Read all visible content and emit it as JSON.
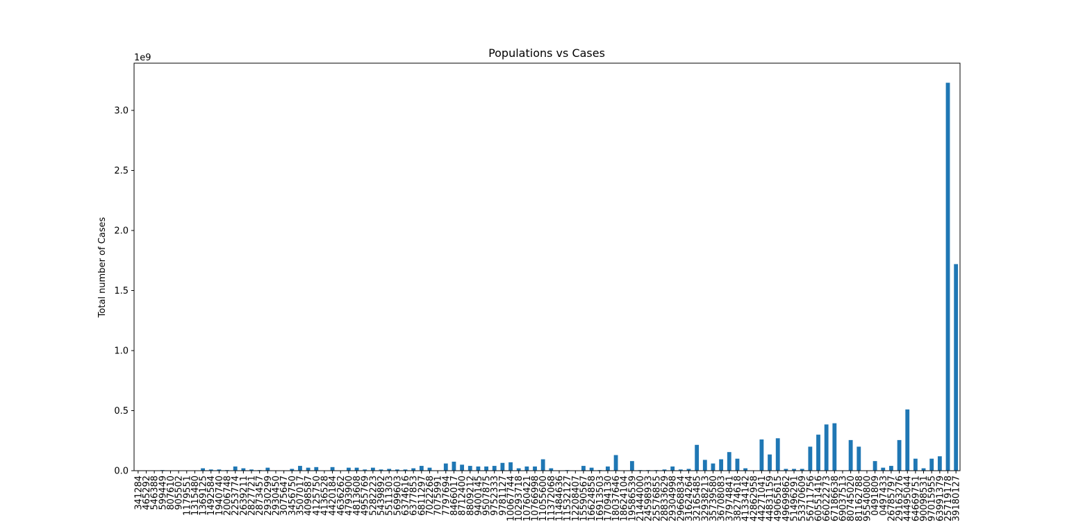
{
  "chart_data": {
    "type": "bar",
    "title": "Populations vs Cases",
    "y_label": "Total number of Cases",
    "y_offset_label": "1e9",
    "categories": [
      "341284",
      "465292",
      "546388",
      "599449",
      "807610",
      "905502",
      "1179551",
      "1315480",
      "1369125",
      "1492584",
      "1940740",
      "2006748",
      "2253774",
      "2639211",
      "2827721",
      "2873457",
      "2930299",
      "2930450",
      "3075647",
      "3456750",
      "3507017",
      "4098587",
      "4125750",
      "4136528",
      "4420184",
      "4636262",
      "4793900",
      "4813608",
      "4955769",
      "5282223",
      "5439892",
      "5511303",
      "5699603",
      "6374616",
      "6377853",
      "6811297",
      "7022268",
      "7075991",
      "7797694",
      "8466017",
      "8712400",
      "8809212",
      "9400145",
      "9507875",
      "9752333",
      "9781127",
      "10067744",
      "10293718",
      "10760421",
      "10766998",
      "11055600",
      "11372068",
      "11484636",
      "11532127",
      "12208407",
      "15590567",
      "16624858",
      "16913503",
      "17094130",
      "18037646",
      "18624104",
      "19586539",
      "21444000",
      "24598933",
      "25576855",
      "28833629",
      "29304998",
      "29668834",
      "31624264",
      "32165485",
      "32938213",
      "35739580",
      "36708083",
      "37974841",
      "38274618",
      "41334142",
      "42862958",
      "44271041",
      "44831159",
      "49065615",
      "49699862",
      "51496291",
      "53370609",
      "56711756",
      "60551416",
      "66022273",
      "67186638",
      "69037513",
      "80745020",
      "81162788",
      "95540800",
      "0491809",
      "0497433",
      "26785797",
      "29163276",
      "44495044",
      "64669751",
      "90098531",
      "97015955",
      "63991379",
      "25719178",
      "39180127"
    ],
    "values": [
      0,
      0,
      0,
      0.005,
      0,
      0,
      0.002,
      0.003,
      0.02,
      0.01,
      0.01,
      0.005,
      0.035,
      0.02,
      0.01,
      0.005,
      0.025,
      0.002,
      0.002,
      0.015,
      0.04,
      0.025,
      0.03,
      0.002,
      0.03,
      0.002,
      0.025,
      0.025,
      0.01,
      0.025,
      0.01,
      0.015,
      0.01,
      0.01,
      0.02,
      0.04,
      0.025,
      0.002,
      0.06,
      0.075,
      0.05,
      0.04,
      0.035,
      0.035,
      0.04,
      0.065,
      0.07,
      0.02,
      0.035,
      0.035,
      0.095,
      0.02,
      0.002,
      0.005,
      0.002,
      0.04,
      0.025,
      0.005,
      0.035,
      0.13,
      0.002,
      0.08,
      0.005,
      0.005,
      0.005,
      0.01,
      0.035,
      0.01,
      0.015,
      0.215,
      0.09,
      0.06,
      0.095,
      0.155,
      0.1,
      0.02,
      0.002,
      0.26,
      0.135,
      0.27,
      0.015,
      0.015,
      0.015,
      0.2,
      0.3,
      0.385,
      0.395,
      0.002,
      0.255,
      0.2,
      0.002,
      0.08,
      0.025,
      0.04,
      0.255,
      0.51,
      0.1,
      0.02,
      0.1,
      0.12,
      3.23,
      1.72
    ],
    "color": "#1f77b4",
    "ylim": [
      0,
      3.393
    ],
    "yticks": [
      {
        "value": 0,
        "label": "0.0"
      },
      0.5,
      {
        "value": 1,
        "label": "1.0"
      },
      1.5,
      {
        "value": 2,
        "label": "2.0"
      },
      2.5,
      {
        "value": 3,
        "label": "3.0"
      }
    ],
    "grid": false
  }
}
